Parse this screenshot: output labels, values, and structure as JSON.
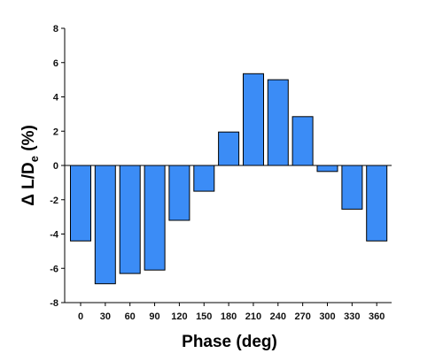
{
  "chart_data": {
    "type": "bar",
    "xlabel": "Phase (deg)",
    "ylabel": "Δ L/D",
    "ylabel_subscript": "e",
    "ylabel_suffix": " (%)",
    "categories": [
      "0",
      "30",
      "60",
      "90",
      "120",
      "150",
      "180",
      "210",
      "240",
      "270",
      "300",
      "330",
      "360"
    ],
    "values": [
      -4.4,
      -6.9,
      -6.3,
      -6.1,
      -3.2,
      -1.5,
      1.95,
      5.35,
      5.0,
      2.85,
      -0.35,
      -2.55,
      -4.4
    ],
    "ylim": [
      -8,
      8
    ],
    "yticks": [
      -8,
      -6,
      -4,
      -2,
      0,
      2,
      4,
      6,
      8
    ],
    "grid": false,
    "colors": {
      "bar_fill": "#3b8cf6",
      "bar_stroke": "#000000",
      "axis": "#000000"
    }
  }
}
